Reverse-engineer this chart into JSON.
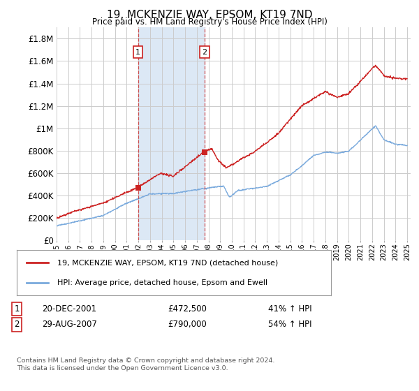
{
  "title": "19, MCKENZIE WAY, EPSOM, KT19 7ND",
  "subtitle": "Price paid vs. HM Land Registry's House Price Index (HPI)",
  "ylim": [
    0,
    1900000
  ],
  "yticks": [
    0,
    200000,
    400000,
    600000,
    800000,
    1000000,
    1200000,
    1400000,
    1600000,
    1800000
  ],
  "ytick_labels": [
    "£0",
    "£200K",
    "£400K",
    "£600K",
    "£800K",
    "£1M",
    "£1.2M",
    "£1.4M",
    "£1.6M",
    "£1.8M"
  ],
  "background_color": "#ffffff",
  "grid_color": "#cccccc",
  "sale1": {
    "date_num": 2001.97,
    "price": 472500,
    "label": "1",
    "date_str": "20-DEC-2001",
    "pct": "41% ↑ HPI"
  },
  "sale2": {
    "date_num": 2007.66,
    "price": 790000,
    "label": "2",
    "date_str": "29-AUG-2007",
    "pct": "54% ↑ HPI"
  },
  "legend_line1": "19, MCKENZIE WAY, EPSOM, KT19 7ND (detached house)",
  "legend_line2": "HPI: Average price, detached house, Epsom and Ewell",
  "footer": "Contains HM Land Registry data © Crown copyright and database right 2024.\nThis data is licensed under the Open Government Licence v3.0.",
  "red_color": "#cc2222",
  "blue_color": "#7aaadd",
  "shade_color": "#dce8f5",
  "xmin": 1995.0,
  "xmax": 2025.3
}
